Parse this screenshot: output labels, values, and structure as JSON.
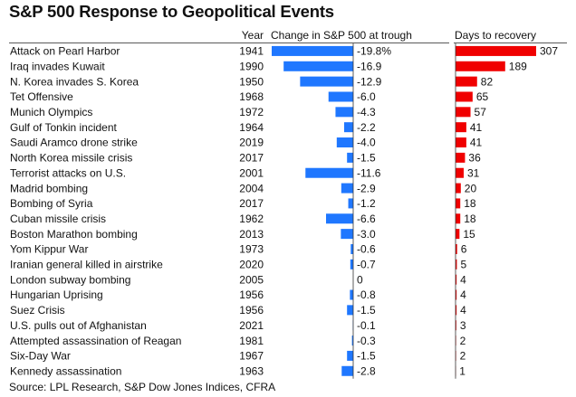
{
  "chart_data": {
    "type": "table",
    "title": "S&P 500 Response to Geopolitical Events",
    "columns": [
      "",
      "Year",
      "Change in S&P 500 at trough",
      "Days to recovery"
    ],
    "source": "Source: LPL Research, S&P Dow Jones Indices, CFRA",
    "colors": {
      "change_bar": "#1f77ff",
      "days_bar": "#f00000"
    },
    "rows": [
      {
        "event": "Attack on Pearl Harbor",
        "year": "1941",
        "change": -19.8,
        "change_label": "-19.8%",
        "days": 307,
        "days_label": "307"
      },
      {
        "event": "Iraq invades Kuwait",
        "year": "1990",
        "change": -16.9,
        "change_label": "-16.9",
        "days": 189,
        "days_label": "189"
      },
      {
        "event": "N. Korea invades S. Korea",
        "year": "1950",
        "change": -12.9,
        "change_label": "-12.9",
        "days": 82,
        "days_label": "82"
      },
      {
        "event": "Tet Offensive",
        "year": "1968",
        "change": -6.0,
        "change_label": "-6.0",
        "days": 65,
        "days_label": "65"
      },
      {
        "event": "Munich Olympics",
        "year": "1972",
        "change": -4.3,
        "change_label": "-4.3",
        "days": 57,
        "days_label": "57"
      },
      {
        "event": "Gulf of Tonkin incident",
        "year": "1964",
        "change": -2.2,
        "change_label": "-2.2",
        "days": 41,
        "days_label": "41"
      },
      {
        "event": "Saudi Aramco drone strike",
        "year": "2019",
        "change": -4.0,
        "change_label": "-4.0",
        "days": 41,
        "days_label": "41"
      },
      {
        "event": "North Korea missile crisis",
        "year": "2017",
        "change": -1.5,
        "change_label": "-1.5",
        "days": 36,
        "days_label": "36"
      },
      {
        "event": "Terrorist attacks on U.S.",
        "year": "2001",
        "change": -11.6,
        "change_label": "-11.6",
        "days": 31,
        "days_label": "31"
      },
      {
        "event": "Madrid bombing",
        "year": "2004",
        "change": -2.9,
        "change_label": "-2.9",
        "days": 20,
        "days_label": "20"
      },
      {
        "event": "Bombing of Syria",
        "year": "2017",
        "change": -1.2,
        "change_label": "-1.2",
        "days": 18,
        "days_label": "18"
      },
      {
        "event": "Cuban missile crisis",
        "year": "1962",
        "change": -6.6,
        "change_label": "-6.6",
        "days": 18,
        "days_label": "18"
      },
      {
        "event": "Boston Marathon bombing",
        "year": "2013",
        "change": -3.0,
        "change_label": "-3.0",
        "days": 15,
        "days_label": "15"
      },
      {
        "event": "Yom Kippur War",
        "year": "1973",
        "change": -0.6,
        "change_label": "-0.6",
        "days": 6,
        "days_label": "6"
      },
      {
        "event": "Iranian general killed in airstrike",
        "year": "2020",
        "change": -0.7,
        "change_label": "-0.7",
        "days": 5,
        "days_label": "5"
      },
      {
        "event": "London subway bombing",
        "year": "2005",
        "change": 0,
        "change_label": "0",
        "days": 4,
        "days_label": "4"
      },
      {
        "event": "Hungarian Uprising",
        "year": "1956",
        "change": -0.8,
        "change_label": "-0.8",
        "days": 4,
        "days_label": "4"
      },
      {
        "event": "Suez Crisis",
        "year": "1956",
        "change": -1.5,
        "change_label": "-1.5",
        "days": 4,
        "days_label": "4"
      },
      {
        "event": "U.S. pulls out of Afghanistan",
        "year": "2021",
        "change": -0.1,
        "change_label": "-0.1",
        "days": 3,
        "days_label": "3"
      },
      {
        "event": "Attempted assassination of Reagan",
        "year": "1981",
        "change": -0.3,
        "change_label": "-0.3",
        "days": 2,
        "days_label": "2"
      },
      {
        "event": "Six-Day War",
        "year": "1967",
        "change": -1.5,
        "change_label": "-1.5",
        "days": 2,
        "days_label": "2"
      },
      {
        "event": "Kennedy assassination",
        "year": "1963",
        "change": -2.8,
        "change_label": "-2.8",
        "days": 1,
        "days_label": "1"
      }
    ]
  }
}
